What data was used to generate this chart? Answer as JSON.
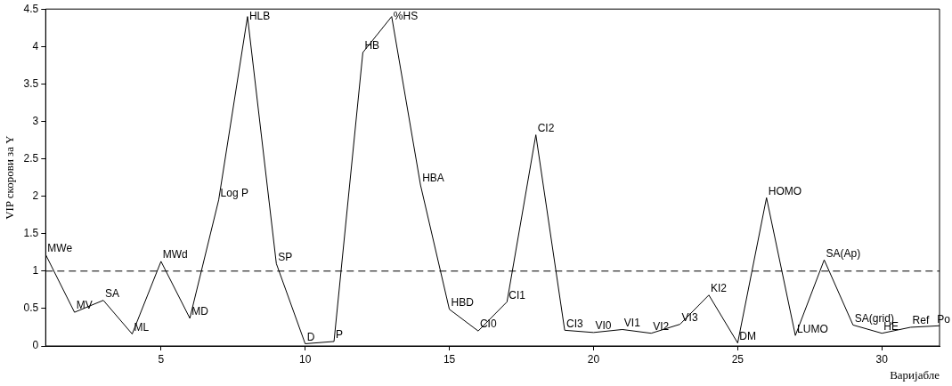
{
  "chart_data": {
    "type": "line",
    "xlabel": "Варијабле",
    "ylabel": "VIP скорови за Y",
    "x": [
      1,
      2,
      3,
      4,
      5,
      6,
      7,
      8,
      9,
      10,
      11,
      12,
      13,
      14,
      15,
      16,
      17,
      18,
      19,
      20,
      21,
      22,
      23,
      24,
      25,
      26,
      27,
      28,
      29,
      30,
      31,
      32
    ],
    "series": [
      {
        "color": "#000000",
        "values": [
          1.22,
          0.45,
          0.61,
          0.16,
          1.13,
          0.37,
          1.95,
          4.4,
          1.1,
          0.03,
          0.06,
          3.92,
          4.4,
          2.15,
          0.49,
          0.2,
          0.59,
          2.82,
          0.21,
          0.18,
          0.22,
          0.17,
          0.29,
          0.68,
          0.04,
          1.98,
          0.14,
          1.15,
          0.28,
          0.17,
          0.25,
          0.27
        ]
      }
    ],
    "annotations": [
      {
        "text": "MWe",
        "x": 1,
        "y": 1.22
      },
      {
        "text": "MV",
        "x": 2,
        "y": 0.45
      },
      {
        "text": "SA",
        "x": 3,
        "y": 0.61
      },
      {
        "text": "ML",
        "x": 4,
        "y": 0.16
      },
      {
        "text": "MWd",
        "x": 5,
        "y": 1.13
      },
      {
        "text": "MD",
        "x": 6,
        "y": 0.37
      },
      {
        "text": "Log P",
        "x": 7,
        "y": 1.95
      },
      {
        "text": "HLB",
        "x": 8,
        "y": 4.4
      },
      {
        "text": "SP",
        "x": 9,
        "y": 1.1
      },
      {
        "text": "D",
        "x": 10,
        "y": 0.03
      },
      {
        "text": "P",
        "x": 11,
        "y": 0.06
      },
      {
        "text": "HB",
        "x": 12,
        "y": 3.92
      },
      {
        "text": "%HS",
        "x": 13,
        "y": 4.4
      },
      {
        "text": "HBA",
        "x": 14,
        "y": 2.15
      },
      {
        "text": "HBD",
        "x": 15,
        "y": 0.49
      },
      {
        "text": "CI0",
        "x": 16,
        "y": 0.2
      },
      {
        "text": "CI1",
        "x": 17,
        "y": 0.59
      },
      {
        "text": "CI2",
        "x": 18,
        "y": 2.82
      },
      {
        "text": "CI3",
        "x": 19,
        "y": 0.21
      },
      {
        "text": "VI0",
        "x": 20,
        "y": 0.18
      },
      {
        "text": "VI1",
        "x": 21,
        "y": 0.22
      },
      {
        "text": "VI2",
        "x": 22,
        "y": 0.17
      },
      {
        "text": "VI3",
        "x": 23,
        "y": 0.29
      },
      {
        "text": "KI2",
        "x": 24,
        "y": 0.68
      },
      {
        "text": "DM",
        "x": 25,
        "y": 0.04
      },
      {
        "text": "HOMO",
        "x": 26,
        "y": 1.98
      },
      {
        "text": "LUMO",
        "x": 27,
        "y": 0.14
      },
      {
        "text": "SA(Ap)",
        "x": 28,
        "y": 1.15
      },
      {
        "text": "SA(grid)",
        "x": 29,
        "y": 0.28
      },
      {
        "text": "HE",
        "x": 30,
        "y": 0.17
      },
      {
        "text": "Ref",
        "x": 31,
        "y": 0.25
      },
      {
        "text": "Po",
        "x": 32,
        "y": 0.27
      }
    ],
    "ref_lines": [
      {
        "axis": "y",
        "value": 1,
        "line_style": "dashed",
        "color": "#000000"
      }
    ],
    "xlim": [
      1,
      32
    ],
    "xticks": [
      5,
      10,
      15,
      20,
      25,
      30
    ],
    "ylim": [
      0,
      4.5
    ],
    "yticks": [
      0,
      0.5,
      1,
      1.5,
      2,
      2.5,
      3,
      3.5,
      4,
      4.5
    ],
    "grid": false,
    "legend": false,
    "marker": "none",
    "line_style": "solid"
  }
}
